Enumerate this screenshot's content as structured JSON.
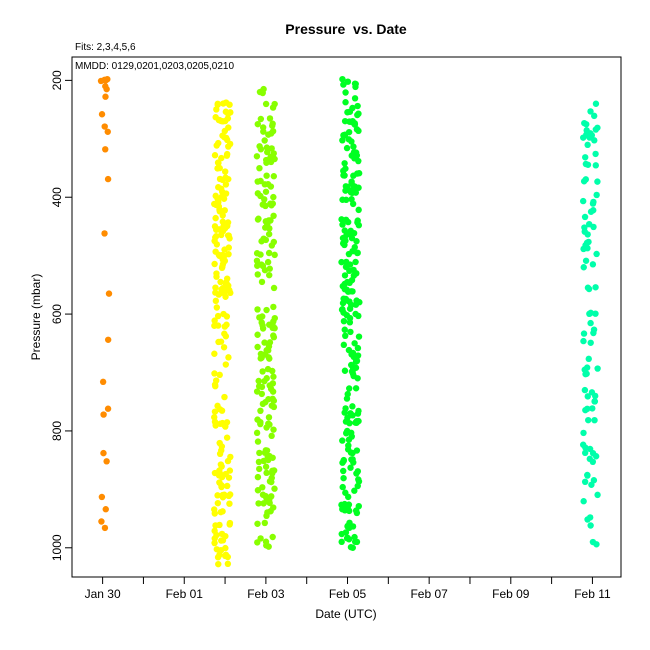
{
  "chart_data": {
    "type": "scatter",
    "title": "Pressure  vs. Date",
    "xlabel": "Date (UTC)",
    "ylabel": "Pressure (mbar)",
    "annotations": [
      "Fits: 2,3,4,5,6",
      "MMDD: 0129,0201,0203,0205,0210"
    ],
    "x_ticks": [
      "Jan 30",
      "Feb 01",
      "Feb 03",
      "Feb 05",
      "Feb 07",
      "Feb 09",
      "Feb 11"
    ],
    "x_tick_days": [
      0,
      2,
      4,
      6,
      8,
      10,
      12
    ],
    "x_minor_tick_days": [
      1,
      3,
      5,
      7,
      9,
      11
    ],
    "xlim_days": [
      -0.75,
      12.7
    ],
    "y_ticks": [
      200,
      400,
      600,
      800,
      1000
    ],
    "ylim": [
      1050,
      160
    ],
    "y_inverted": true,
    "x_unit": "days since Jan 30 00:00 UTC",
    "grid": false,
    "series": [
      {
        "name": "Fit 2 (0129)",
        "color": "#ff8c00",
        "x_center": 0.05,
        "x_jitter": 0.12,
        "pressures": [
          198,
          199,
          200,
          201,
          210,
          215,
          228,
          258,
          279,
          288,
          318,
          369,
          462,
          565,
          644,
          716,
          762,
          772,
          838,
          852,
          913,
          934,
          955,
          966
        ]
      },
      {
        "name": "Fit 3 (0201)",
        "color": "#ffff00",
        "x_center": 2.93,
        "x_jitter": 0.2,
        "pmin": 238,
        "pmax": 1028,
        "count": 200,
        "seed": 11
      },
      {
        "name": "Fit 4 (0203)",
        "color": "#88ff00",
        "x_center": 4.0,
        "x_jitter": 0.22,
        "pmin": 215,
        "pmax": 998,
        "count": 190,
        "seed": 23
      },
      {
        "name": "Fit 5 (0205)",
        "color": "#00ff22",
        "x_center": 6.07,
        "x_jitter": 0.22,
        "pmin": 198,
        "pmax": 1000,
        "count": 230,
        "seed": 37
      },
      {
        "name": "Fit 6 (0210)",
        "color": "#00ffaa",
        "x_center": 11.95,
        "x_jitter": 0.18,
        "pmin": 240,
        "pmax": 994,
        "count": 95,
        "seed": 53
      }
    ]
  }
}
